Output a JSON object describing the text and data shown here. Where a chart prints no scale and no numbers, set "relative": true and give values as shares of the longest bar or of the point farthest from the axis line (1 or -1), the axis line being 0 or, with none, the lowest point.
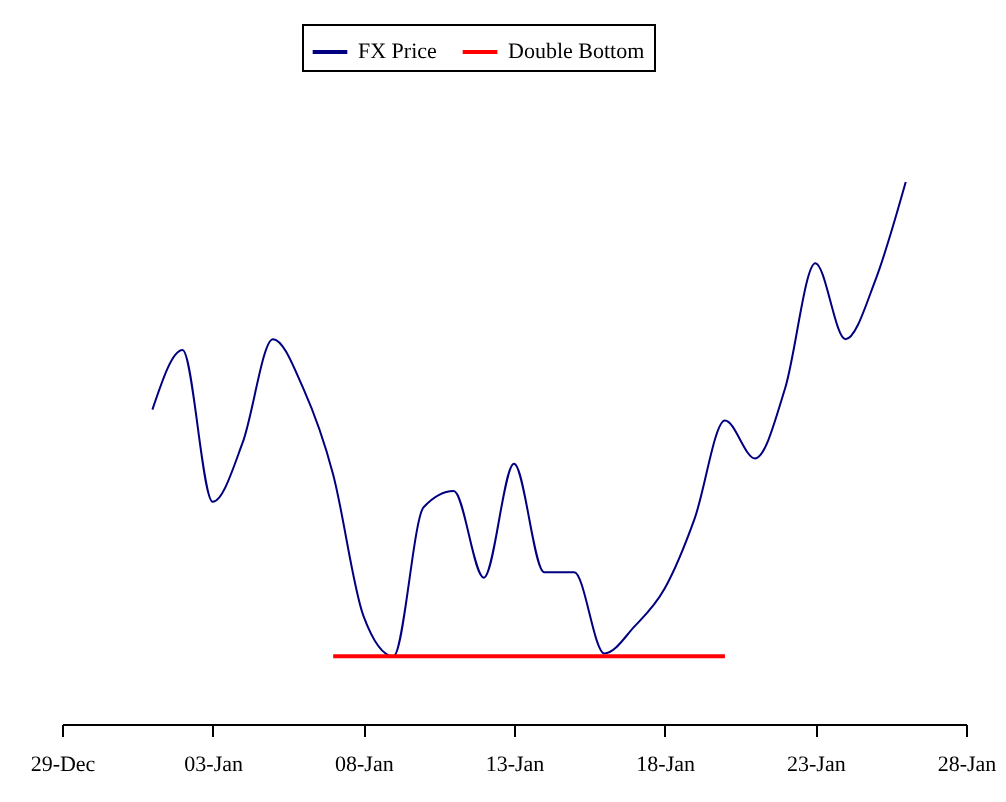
{
  "chart_data": {
    "type": "line",
    "relative": true,
    "legend": "top",
    "grid": false,
    "categories": [
      "29-Dec",
      null,
      null,
      null,
      null,
      "03-Jan",
      null,
      null,
      null,
      null,
      "08-Jan",
      null,
      null,
      null,
      null,
      "13-Jan",
      null,
      null,
      null,
      null,
      "18-Jan",
      null,
      null,
      null,
      null,
      "23-Jan",
      null,
      null,
      null,
      null,
      "28-Jan"
    ],
    "series": [
      {
        "name": "FX Price",
        "color": "#000080",
        "values": [
          null,
          null,
          null,
          0.58,
          0.69,
          0.41,
          0.52,
          0.71,
          0.62,
          0.46,
          0.2,
          0.125,
          0.4,
          0.43,
          0.27,
          0.48,
          0.28,
          0.28,
          0.13,
          0.18,
          0.25,
          0.38,
          0.56,
          0.49,
          0.62,
          0.85,
          0.71,
          0.82,
          1.0,
          null,
          null
        ]
      },
      {
        "name": "Double Bottom",
        "type": "line",
        "color": "#ff0000",
        "values": [
          null,
          null,
          null,
          null,
          null,
          null,
          null,
          null,
          null,
          0.125,
          0.125,
          0.125,
          0.125,
          0.125,
          0.125,
          0.125,
          0.125,
          0.125,
          0.125,
          0.125,
          0.125,
          0.125,
          0.125,
          null,
          null,
          null,
          null,
          null,
          null,
          null,
          null
        ]
      }
    ]
  }
}
